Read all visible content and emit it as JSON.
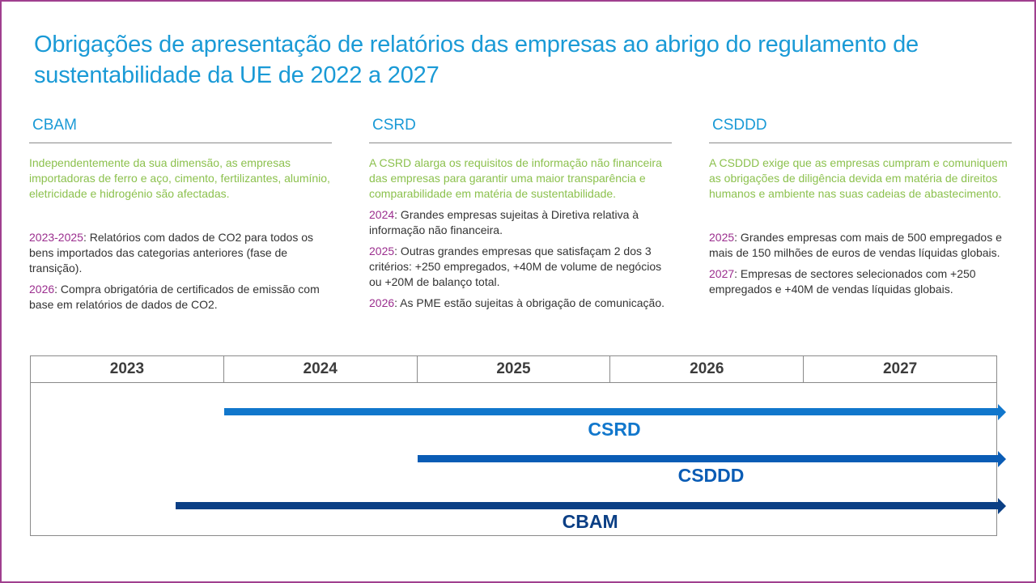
{
  "title": "Obrigações de apresentação de relatórios das empresas ao abrigo do regulamento de sustentabilidade da UE de 2022 a 2027",
  "columns": [
    {
      "heading": "CBAM",
      "intro": "Independentemente  da sua dimensão, as empresas importadoras de ferro e aço, cimento, fertilizantes, alumínio, eletricidade e hidrogénio são afectadas.",
      "entries": [
        {
          "year": "2023-2025",
          "text": ": Relatórios com dados de CO2 para todos os bens importados das categorias anteriores (fase de transição)."
        },
        {
          "year": "2026",
          "text": ": Compra obrigatória de certificados de emissão com base em relatórios de dados de CO2."
        }
      ]
    },
    {
      "heading": "CSRD",
      "intro": "A CSRD alarga os requisitos de informação não financeira das empresas para garantir uma maior transparência e comparabilidade em matéria de sustentabilidade.",
      "entries": [
        {
          "year": "2024",
          "text": ": Grandes empresas sujeitas à Diretiva relativa à informação não financeira."
        },
        {
          "year": "2025",
          "text": ": Outras grandes empresas que satisfaçam 2 dos 3 critérios:  +250 empregados, +40M de volume de negócios ou +20M de balanço total."
        },
        {
          "year": "2026",
          "text": ": As PME estão sujeitas à obrigação de comunicação."
        }
      ]
    },
    {
      "heading": "CSDDD",
      "intro": "A CSDDD exige que as empresas cumpram e comuniquem as obrigações de diligência devida em matéria de direitos humanos e ambiente nas suas cadeias de abastecimento.",
      "entries": [
        {
          "year": "2025",
          "text": ": Grandes empresas com mais de 500 empregados e mais de 150 milhões de euros de vendas líquidas globais."
        },
        {
          "year": "2027",
          "text": ": Empresas de sectores selecionados com +250 empregados e +40M de vendas líquidas globais."
        }
      ]
    }
  ],
  "timeline": {
    "years": [
      "2023",
      "2024",
      "2025",
      "2026",
      "2027"
    ],
    "bars": [
      {
        "label": "CSRD",
        "start_year": 2024,
        "color": "#1177cc"
      },
      {
        "label": "CSDDD",
        "start_year": 2025,
        "color": "#0a5cb5"
      },
      {
        "label": "CBAM",
        "start_year": 2023.75,
        "color": "#0b3f85"
      }
    ]
  }
}
